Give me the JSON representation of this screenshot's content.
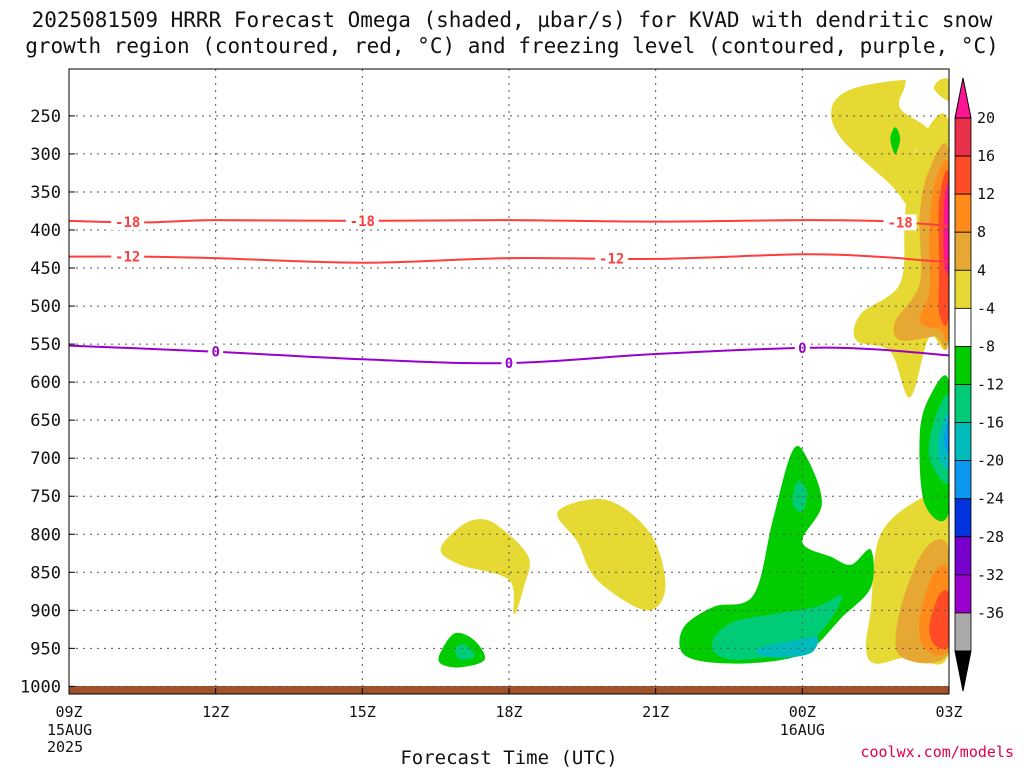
{
  "title_line1": "2025081509 HRRR Forecast Omega (shaded, µbar/s) for KVAD with dendritic snow",
  "title_line2": "growth region (contoured, red, °C) and freezing level (contoured, purple, °C)",
  "credit": "coolwx.com/models",
  "chart_data": {
    "type": "time-height cross section",
    "xlabel": "Forecast Time (UTC)",
    "x_ticks": [
      "09Z",
      "12Z",
      "15Z",
      "18Z",
      "21Z",
      "00Z",
      "03Z"
    ],
    "x_hours": [
      9,
      12,
      15,
      18,
      21,
      24,
      27
    ],
    "x_range": [
      9,
      27
    ],
    "x_date_labels": [
      {
        "tick": "09Z",
        "lines": [
          "15AUG",
          "2025"
        ]
      },
      {
        "tick": "00Z",
        "lines": [
          "16AUG"
        ]
      }
    ],
    "y_axis": "pressure (hPa), reversed",
    "y_ticks": [
      250,
      300,
      350,
      400,
      450,
      500,
      550,
      600,
      650,
      700,
      750,
      800,
      850,
      900,
      950,
      1000
    ],
    "y_range": [
      200,
      1020
    ],
    "grid": true,
    "colorbar": {
      "labels": [
        "20",
        "16",
        "12",
        "8",
        "4",
        "-4",
        "-8",
        "-12",
        "-16",
        "-20",
        "-24",
        "-28",
        "-32",
        "-36"
      ],
      "colors": [
        "#ff1493",
        "#e8304a",
        "#ff4b26",
        "#ff8c1a",
        "#e6a733",
        "#e6d933",
        "#ffffff",
        "#00cc00",
        "#00cc77",
        "#00bbbb",
        "#0a99ee",
        "#0033dd",
        "#7700cc",
        "#9900cc",
        "#aaaaaa",
        "#000000"
      ]
    },
    "contours": [
      {
        "label": "-18",
        "color": "#ff3d3d",
        "points": [
          [
            9,
            388
          ],
          [
            10.5,
            390
          ],
          [
            12,
            387
          ],
          [
            15,
            388
          ],
          [
            18,
            387
          ],
          [
            21,
            389
          ],
          [
            24,
            387
          ],
          [
            25.5,
            388
          ],
          [
            26.5,
            392
          ],
          [
            27,
            395
          ]
        ],
        "label_x": [
          10.2,
          15,
          26
        ]
      },
      {
        "label": "-12",
        "color": "#ff3d3d",
        "points": [
          [
            9,
            435
          ],
          [
            10.5,
            435
          ],
          [
            12,
            437
          ],
          [
            15,
            443
          ],
          [
            18,
            437
          ],
          [
            21,
            438
          ],
          [
            24,
            432
          ],
          [
            25.5,
            435
          ],
          [
            26.5,
            440
          ],
          [
            27,
            442
          ]
        ],
        "label_x": [
          10.2,
          20.1
        ]
      },
      {
        "label": "0",
        "color": "#9900cc",
        "points": [
          [
            9,
            552
          ],
          [
            12,
            560
          ],
          [
            15,
            570
          ],
          [
            18,
            575
          ],
          [
            21,
            563
          ],
          [
            24,
            555
          ],
          [
            25.5,
            557
          ],
          [
            27,
            565
          ]
        ],
        "label_x": [
          12,
          18,
          24
        ]
      }
    ],
    "omega_regions": [
      {
        "value": "4 to 8",
        "color": "#e6d933",
        "points": [
          [
            26.5,
            750
          ],
          [
            25.6,
            800
          ],
          [
            25.4,
            900
          ],
          [
            25.3,
            950
          ],
          [
            25.5,
            970
          ],
          [
            26.2,
            960
          ],
          [
            27,
            955
          ],
          [
            27,
            750
          ]
        ]
      },
      {
        "value": "8 to 12",
        "color": "#e6a733",
        "points": [
          [
            26.5,
            820
          ],
          [
            26,
            900
          ],
          [
            26,
            960
          ],
          [
            27,
            955
          ],
          [
            27,
            820
          ]
        ]
      },
      {
        "value": "12 to 16",
        "color": "#ff8c1a",
        "points": [
          [
            26.7,
            850
          ],
          [
            26.4,
            910
          ],
          [
            26.5,
            950
          ],
          [
            27,
            950
          ],
          [
            27,
            850
          ]
        ]
      },
      {
        "value": "16 to 20",
        "color": "#ff4b26",
        "points": [
          [
            26.8,
            880
          ],
          [
            26.6,
            920
          ],
          [
            26.7,
            945
          ],
          [
            27,
            945
          ],
          [
            27,
            880
          ]
        ]
      },
      {
        "value": "4 to 8",
        "color": "#e6d933",
        "points": [
          [
            26,
            203
          ],
          [
            25,
            215
          ],
          [
            24.6,
            240
          ],
          [
            24.8,
            280
          ],
          [
            25.8,
            340
          ],
          [
            26.2,
            370
          ],
          [
            26.4,
            350
          ],
          [
            26.3,
            300
          ],
          [
            26.6,
            270
          ],
          [
            26.0,
            240
          ],
          [
            26.1,
            210
          ]
        ]
      },
      {
        "value": "4 to 8",
        "color": "#e6d933",
        "points": [
          [
            26.8,
            203
          ],
          [
            26.7,
            215
          ],
          [
            27,
            230
          ],
          [
            27,
            203
          ]
        ]
      },
      {
        "value": "4 to 8",
        "color": "#e6d933",
        "points": [
          [
            27,
            260
          ],
          [
            26.3,
            300
          ],
          [
            26.1,
            380
          ],
          [
            26.0,
            470
          ],
          [
            25.2,
            510
          ],
          [
            25.1,
            545
          ],
          [
            25.8,
            560
          ],
          [
            26.2,
            620
          ],
          [
            26.6,
            540
          ],
          [
            27,
            540
          ]
        ]
      },
      {
        "value": "8 to 12",
        "color": "#e6a733",
        "points": [
          [
            27,
            300
          ],
          [
            26.6,
            320
          ],
          [
            26.4,
            380
          ],
          [
            26.4,
            470
          ],
          [
            25.9,
            520
          ],
          [
            26.0,
            545
          ],
          [
            26.7,
            540
          ],
          [
            27,
            540
          ]
        ]
      },
      {
        "value": "12 to 16",
        "color": "#ff8c1a",
        "points": [
          [
            27,
            320
          ],
          [
            26.7,
            340
          ],
          [
            26.6,
            400
          ],
          [
            26.6,
            480
          ],
          [
            26.4,
            520
          ],
          [
            26.8,
            530
          ],
          [
            27,
            530
          ]
        ]
      },
      {
        "value": "16 to 20",
        "color": "#ff4b26",
        "points": [
          [
            27,
            330
          ],
          [
            26.8,
            360
          ],
          [
            26.8,
            450
          ],
          [
            26.8,
            510
          ],
          [
            27,
            510
          ]
        ]
      },
      {
        "value": "20+",
        "color": "#ff1493",
        "points": [
          [
            27,
            340
          ],
          [
            26.9,
            370
          ],
          [
            26.9,
            440
          ],
          [
            27,
            450
          ]
        ]
      },
      {
        "value": "4 to 8",
        "color": "#e6d933",
        "points": [
          [
            17,
            790
          ],
          [
            16.6,
            820
          ],
          [
            17.0,
            840
          ],
          [
            18.0,
            860
          ],
          [
            18.1,
            905
          ],
          [
            18.3,
            870
          ],
          [
            18.4,
            830
          ],
          [
            17.8,
            790
          ],
          [
            17.4,
            780
          ]
        ]
      },
      {
        "value": "4 to 8",
        "color": "#e6d933",
        "points": [
          [
            19,
            770
          ],
          [
            20,
            755
          ],
          [
            20.9,
            800
          ],
          [
            21.2,
            870
          ],
          [
            20.8,
            900
          ],
          [
            19.8,
            860
          ],
          [
            19.4,
            810
          ]
        ]
      },
      {
        "value": "-4 to -8",
        "color": "#00cc00",
        "points": [
          [
            16.6,
            955
          ],
          [
            16.9,
            930
          ],
          [
            17.3,
            940
          ],
          [
            17.5,
            965
          ],
          [
            17.0,
            975
          ],
          [
            16.6,
            970
          ]
        ]
      },
      {
        "value": "-8 to -12",
        "color": "#00cc77",
        "points": [
          [
            16.9,
            950
          ],
          [
            17.1,
            945
          ],
          [
            17.3,
            960
          ],
          [
            17.0,
            965
          ]
        ]
      },
      {
        "value": "-4 to -8",
        "color": "#00cc00",
        "points": [
          [
            21.6,
            920
          ],
          [
            22.2,
            895
          ],
          [
            23.0,
            880
          ],
          [
            23.4,
            780
          ],
          [
            23.8,
            690
          ],
          [
            24.1,
            700
          ],
          [
            24.4,
            760
          ],
          [
            24.0,
            810
          ],
          [
            24.6,
            830
          ],
          [
            25.0,
            840
          ],
          [
            25.4,
            820
          ],
          [
            25.4,
            870
          ],
          [
            24.8,
            910
          ],
          [
            24.2,
            950
          ],
          [
            23.6,
            965
          ],
          [
            22.6,
            970
          ],
          [
            21.8,
            965
          ],
          [
            21.5,
            950
          ]
        ]
      },
      {
        "value": "-8 to -12",
        "color": "#00cc77",
        "points": [
          [
            22.2,
            935
          ],
          [
            22.6,
            915
          ],
          [
            23.4,
            905
          ],
          [
            24.3,
            895
          ],
          [
            24.8,
            880
          ],
          [
            24.6,
            910
          ],
          [
            24.1,
            945
          ],
          [
            23.4,
            960
          ],
          [
            22.6,
            965
          ],
          [
            22.2,
            955
          ]
        ]
      },
      {
        "value": "-12 to -16",
        "color": "#00bbbb",
        "points": [
          [
            23.1,
            950
          ],
          [
            23.8,
            940
          ],
          [
            24.3,
            935
          ],
          [
            24.2,
            955
          ],
          [
            23.7,
            962
          ],
          [
            23.2,
            960
          ]
        ]
      },
      {
        "value": "-8 to -12",
        "color": "#00cc77",
        "points": [
          [
            23.9,
            730
          ],
          [
            24.1,
            745
          ],
          [
            24.0,
            770
          ],
          [
            23.8,
            760
          ]
        ]
      },
      {
        "value": "-4 to -8",
        "color": "#00cc00",
        "points": [
          [
            27,
            600
          ],
          [
            26.6,
            620
          ],
          [
            26.4,
            670
          ],
          [
            26.5,
            760
          ],
          [
            27,
            770
          ]
        ]
      },
      {
        "value": "-8 to -12",
        "color": "#00cc77",
        "points": [
          [
            27,
            620
          ],
          [
            26.7,
            650
          ],
          [
            26.6,
            700
          ],
          [
            27,
            730
          ]
        ]
      },
      {
        "value": "-12 to -16",
        "color": "#00bbbb",
        "points": [
          [
            27,
            640
          ],
          [
            26.8,
            670
          ],
          [
            26.8,
            700
          ],
          [
            27,
            710
          ]
        ]
      },
      {
        "value": "-16 to -20",
        "color": "#0a99ee",
        "points": [
          [
            27,
            650
          ],
          [
            26.9,
            675
          ],
          [
            27,
            695
          ]
        ]
      },
      {
        "value": "-4 to -8",
        "color": "#00cc00",
        "points": [
          [
            25.9,
            265
          ],
          [
            25.8,
            280
          ],
          [
            25.9,
            300
          ],
          [
            26.0,
            280
          ]
        ]
      }
    ],
    "ground_color": "#a0522d",
    "ground_top_hpa": 1010
  }
}
